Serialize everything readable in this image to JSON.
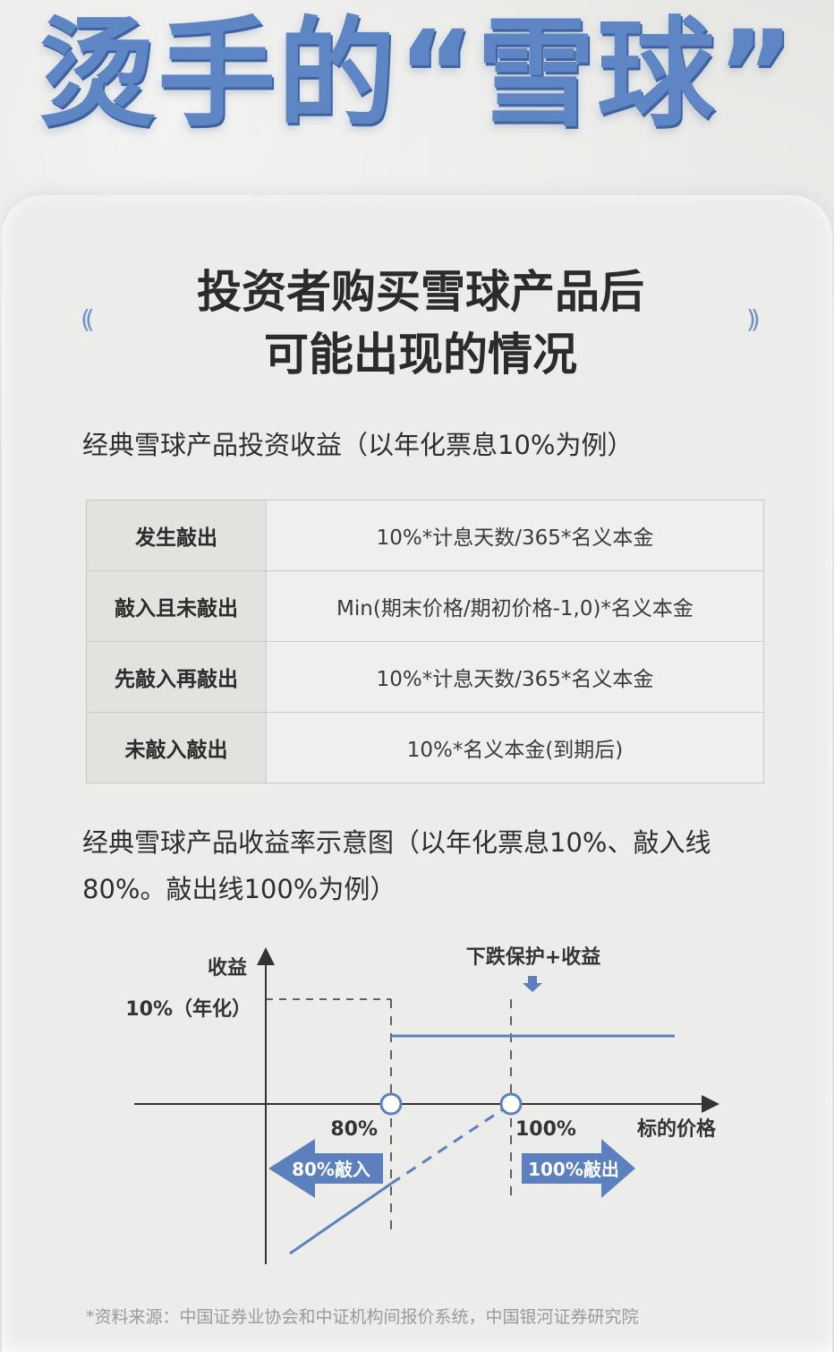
{
  "hero": {
    "title": "烫手的“雪球”"
  },
  "headline": {
    "line1": "投资者购买雪球产品后",
    "line2": "可能出现的情况",
    "bracket_left": "((",
    "bracket_right": "))"
  },
  "table_section": {
    "heading": "经典雪球产品投资收益（以年化票息10%为例）",
    "rows": [
      {
        "case": "发生敲出",
        "formula": "10%*计息天数/365*名义本金"
      },
      {
        "case": "敲入且未敲出",
        "formula": "Min(期末价格/期初价格-1,0)*名义本金"
      },
      {
        "case": "先敲入再敲出",
        "formula": "10%*计息天数/365*名义本金"
      },
      {
        "case": "未敲入敲出",
        "formula": "10%*名义本金(到期后)"
      }
    ]
  },
  "chart_section": {
    "heading_line1": "经典雪球产品收益率示意图（以年化票息10%、敲入线",
    "heading_line2": "80%。敲出线100%为例）"
  },
  "chart_data": {
    "type": "line",
    "ylabel": "收益",
    "xlabel": "标的价格",
    "y_tick_label": "10%（年化）",
    "coupon": 10,
    "knock_in": 80,
    "knock_out": 100,
    "knock_in_label": "80%",
    "knock_out_label": "100%",
    "annotation": "下跌保护+收益",
    "arrow_left_label": "80%敲入",
    "arrow_right_label": "100%敲出",
    "series": [
      {
        "style": "solid",
        "points": [
          [
            80,
            10
          ],
          [
            180,
            10
          ]
        ]
      },
      {
        "style": "solid",
        "points": [
          [
            20,
            -60
          ],
          [
            80,
            -36
          ]
        ]
      },
      {
        "style": "dashed",
        "points": [
          [
            80,
            -36
          ],
          [
            100,
            0
          ]
        ]
      }
    ],
    "colors": {
      "line": "#5b80bd",
      "axis": "#333333",
      "arrow": "#5b80bd"
    }
  },
  "footer": {
    "source": "*资料来源：中国证券业协会和中证机构间报价系统，中国银河证券研究院"
  }
}
